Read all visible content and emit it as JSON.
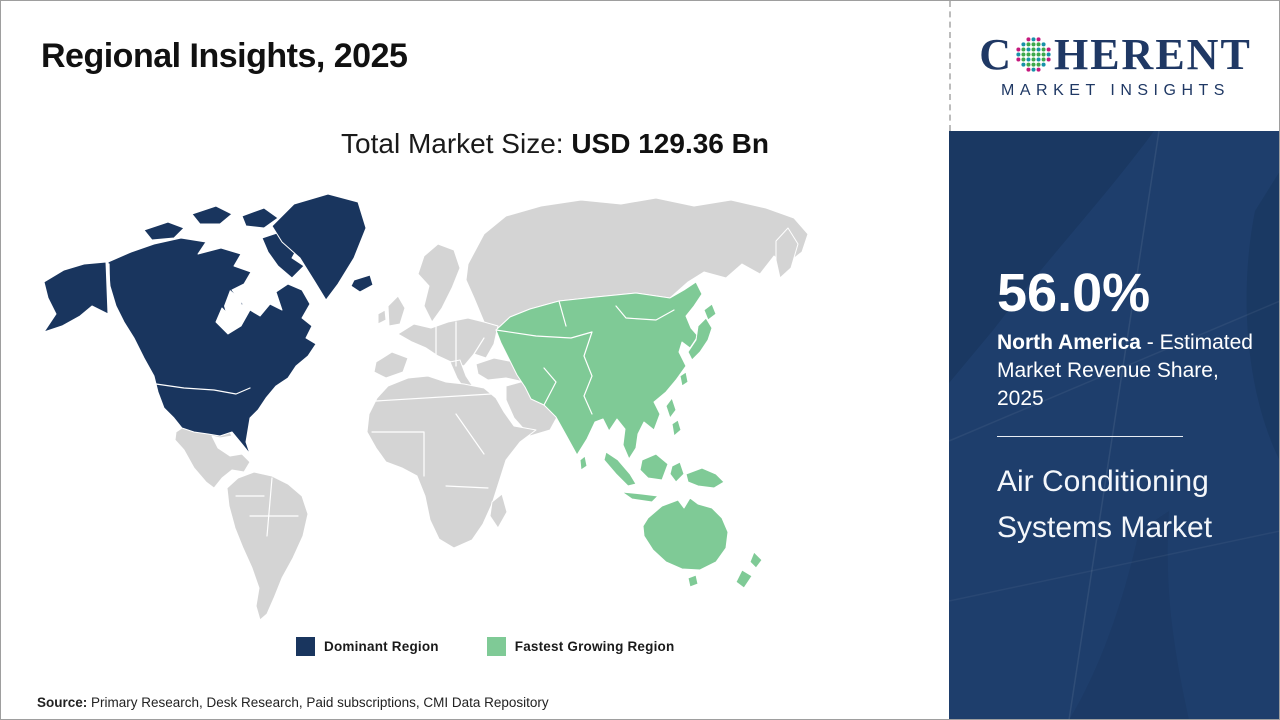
{
  "header": {
    "title": "Regional Insights, 2025"
  },
  "subtitle": {
    "label": "Total Market Size: ",
    "value": "USD 129.36 Bn"
  },
  "chart_data": {
    "type": "choropleth_map",
    "title": "Regional Insights, 2025",
    "total_market_size": "USD 129.36 Bn",
    "legend": [
      "Dominant Region",
      "Fastest Growing Region"
    ],
    "regions": [
      {
        "name": "North America",
        "role": "Dominant Region",
        "estimated_market_revenue_share_2025_pct": 56.0,
        "color": "#19355e"
      },
      {
        "name": "Asia Pacific",
        "role": "Fastest Growing Region",
        "color": "#7fca96"
      }
    ],
    "layout_hints": {
      "legend_position": "bottom",
      "neutral_land_color": "#d4d4d4"
    }
  },
  "legend": {
    "items": [
      {
        "label": "Dominant Region",
        "color": "#19355e"
      },
      {
        "label": "Fastest Growing Region",
        "color": "#7fca96"
      }
    ]
  },
  "sidebar": {
    "share_value": "56.0%",
    "share_region": "North America",
    "share_desc": " - Estimated Market Revenue Share, 2025",
    "market_name": "Air Conditioning Systems Market"
  },
  "logo": {
    "word_start": "C",
    "word_end": "HERENT",
    "tagline": "MARKET INSIGHTS",
    "dot_colors": {
      "pink": "#c4197d",
      "teal": "#1792a8",
      "green": "#3fa94c"
    }
  },
  "source": {
    "label": "Source:",
    "text": " Primary Research, Desk Research, Paid subscriptions, CMI Data Repository"
  },
  "theme": {
    "dominant": "#19355e",
    "fastest": "#7fca96",
    "neutral": "#d4d4d4",
    "panel": "#1e3e6c",
    "brand": "#1f3864"
  }
}
